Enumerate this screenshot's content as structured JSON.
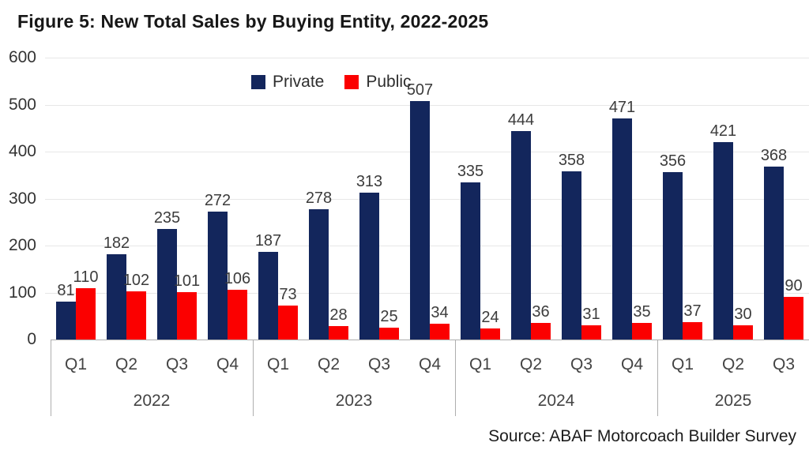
{
  "title": "Figure 5: New Total Sales by Buying Entity, 2022-2025",
  "source": "Source: ABAF Motorcoach Builder Survey",
  "legend": {
    "private_label": "Private",
    "public_label": "Public"
  },
  "colors": {
    "private": "#13265C",
    "public": "#FB0000",
    "gridline": "#E7E7E7",
    "axis": "#AEAEAE",
    "label_text": "#3C3C3C"
  },
  "chart_data": {
    "type": "bar",
    "title": "Figure 5: New Total Sales by Buying Entity, 2022-2025",
    "xlabel": "",
    "ylabel": "",
    "ylim": [
      0,
      600
    ],
    "yticks": [
      0,
      100,
      200,
      300,
      400,
      500,
      600
    ],
    "grid": true,
    "legend_position": "top-center",
    "series": [
      {
        "name": "Private",
        "color": "#13265C"
      },
      {
        "name": "Public",
        "color": "#FB0000"
      }
    ],
    "groups": [
      {
        "year": "2022",
        "quarters": [
          "Q1",
          "Q2",
          "Q3",
          "Q4"
        ],
        "private": [
          81,
          182,
          235,
          272
        ],
        "public": [
          110,
          102,
          101,
          106
        ]
      },
      {
        "year": "2023",
        "quarters": [
          "Q1",
          "Q2",
          "Q3",
          "Q4"
        ],
        "private": [
          187,
          278,
          313,
          507
        ],
        "public": [
          73,
          28,
          25,
          34
        ]
      },
      {
        "year": "2024",
        "quarters": [
          "Q1",
          "Q2",
          "Q3",
          "Q4"
        ],
        "private": [
          335,
          444,
          358,
          471
        ],
        "public": [
          24,
          36,
          31,
          35
        ]
      },
      {
        "year": "2025",
        "quarters": [
          "Q1",
          "Q2",
          "Q3"
        ],
        "private": [
          356,
          421,
          368
        ],
        "public": [
          37,
          30,
          90
        ]
      }
    ]
  }
}
